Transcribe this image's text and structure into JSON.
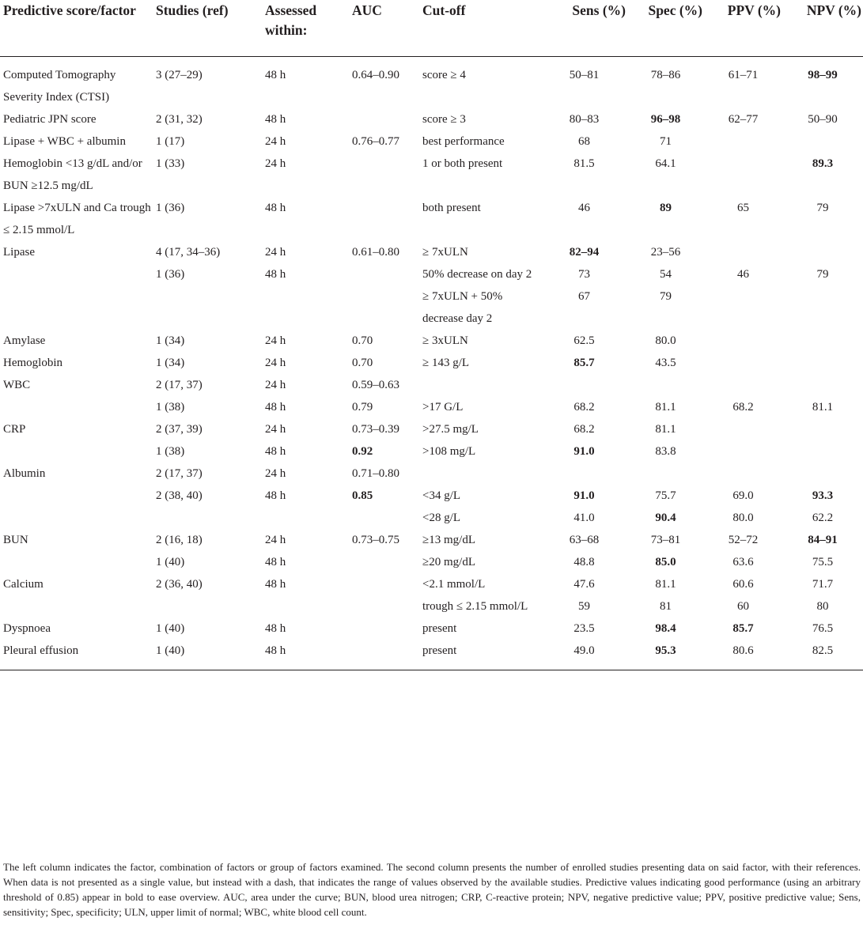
{
  "headers": [
    "Predictive score/factor",
    "Studies (ref)",
    "Assessed within:",
    "AUC",
    "Cut-off",
    "Sens (%)",
    "Spec (%)",
    "PPV (%)",
    "NPV (%)"
  ],
  "rows": [
    {
      "factor": "Computed Tomography Severity Index (CTSI)",
      "studies": "3 (27–29)",
      "assessed": "48 h",
      "auc": "0.64–0.90",
      "cutoff": "score ≥ 4",
      "sens": "50–81",
      "spec": "78–86",
      "ppv": "61–71",
      "npv": "98–99",
      "bold": [
        "npv"
      ]
    },
    {
      "factor": "Pediatric JPN score",
      "studies": "2 (31, 32)",
      "assessed": "48 h",
      "auc": "",
      "cutoff": "score ≥ 3",
      "sens": "80–83",
      "spec": "96–98",
      "ppv": "62–77",
      "npv": "50–90",
      "bold": [
        "spec"
      ]
    },
    {
      "factor": "Lipase + WBC + albumin",
      "studies": "1 (17)",
      "assessed": "24 h",
      "auc": "0.76–0.77",
      "cutoff": "best performance",
      "sens": "68",
      "spec": "71",
      "ppv": "",
      "npv": "",
      "bold": []
    },
    {
      "factor": "Hemoglobin <13 g/dL and/or BUN ≥12.5 mg/dL",
      "studies": "1 (33)",
      "assessed": "24 h",
      "auc": "",
      "cutoff": "1 or both present",
      "sens": "81.5",
      "spec": "64.1",
      "ppv": "",
      "npv": "89.3",
      "bold": [
        "npv"
      ]
    },
    {
      "factor": "Lipase >7xULN and Ca trough ≤ 2.15 mmol/L",
      "studies": "1 (36)",
      "assessed": "48 h",
      "auc": "",
      "cutoff": "both present",
      "sens": "46",
      "spec": "89",
      "ppv": "65",
      "npv": "79",
      "bold": [
        "spec"
      ]
    },
    {
      "factor": "Lipase",
      "studies": "4 (17, 34–36)",
      "assessed": "24 h",
      "auc": "0.61–0.80",
      "cutoff": "≥ 7xULN",
      "sens": "82–94",
      "spec": "23–56",
      "ppv": "",
      "npv": "",
      "bold": [
        "sens"
      ]
    },
    {
      "factor": "",
      "studies": "1 (36)",
      "assessed": "48 h",
      "auc": "",
      "cutoff": "50% decrease on day 2",
      "sens": "73",
      "spec": "54",
      "ppv": "46",
      "npv": "79",
      "bold": []
    },
    {
      "factor": "",
      "studies": "",
      "assessed": "",
      "auc": "",
      "cutoff": "≥ 7xULN + 50% decrease day 2",
      "sens": "67",
      "spec": "79",
      "ppv": "",
      "npv": "",
      "bold": []
    },
    {
      "factor": "Amylase",
      "studies": "1 (34)",
      "assessed": "24 h",
      "auc": "0.70",
      "cutoff": "≥ 3xULN",
      "sens": "62.5",
      "spec": "80.0",
      "ppv": "",
      "npv": "",
      "bold": []
    },
    {
      "factor": "Hemoglobin",
      "studies": "1 (34)",
      "assessed": "24 h",
      "auc": "0.70",
      "cutoff": "≥ 143 g/L",
      "sens": "85.7",
      "spec": "43.5",
      "ppv": "",
      "npv": "",
      "bold": [
        "sens"
      ]
    },
    {
      "factor": "WBC",
      "studies": "2 (17, 37)",
      "assessed": "24 h",
      "auc": "0.59–0.63",
      "cutoff": "",
      "sens": "",
      "spec": "",
      "ppv": "",
      "npv": "",
      "bold": []
    },
    {
      "factor": "",
      "studies": "1 (38)",
      "assessed": "48 h",
      "auc": "0.79",
      "cutoff": ">17 G/L",
      "sens": "68.2",
      "spec": "81.1",
      "ppv": "68.2",
      "npv": "81.1",
      "bold": []
    },
    {
      "factor": "CRP",
      "studies": "2 (37, 39)",
      "assessed": "24 h",
      "auc": "0.73–0.39",
      "cutoff": ">27.5 mg/L",
      "sens": "68.2",
      "spec": "81.1",
      "ppv": "",
      "npv": "",
      "bold": []
    },
    {
      "factor": "",
      "studies": "1 (38)",
      "assessed": "48 h",
      "auc": "0.92",
      "cutoff": ">108 mg/L",
      "sens": "91.0",
      "spec": "83.8",
      "ppv": "",
      "npv": "",
      "bold": [
        "auc",
        "sens"
      ]
    },
    {
      "factor": "Albumin",
      "studies": "2 (17, 37)",
      "assessed": "24 h",
      "auc": "0.71–0.80",
      "cutoff": "",
      "sens": "",
      "spec": "",
      "ppv": "",
      "npv": "",
      "bold": []
    },
    {
      "factor": "",
      "studies": "2 (38, 40)",
      "assessed": "48 h",
      "auc": "0.85",
      "cutoff": "<34 g/L",
      "sens": "91.0",
      "spec": "75.7",
      "ppv": "69.0",
      "npv": "93.3",
      "bold": [
        "auc",
        "sens",
        "npv"
      ]
    },
    {
      "factor": "",
      "studies": "",
      "assessed": "",
      "auc": "",
      "cutoff": "<28 g/L",
      "sens": "41.0",
      "spec": "90.4",
      "ppv": "80.0",
      "npv": "62.2",
      "bold": [
        "spec"
      ]
    },
    {
      "factor": "BUN",
      "studies": "2 (16, 18)",
      "assessed": "24 h",
      "auc": "0.73–0.75",
      "cutoff": "≥13 mg/dL",
      "sens": "63–68",
      "spec": "73–81",
      "ppv": "52–72",
      "npv": "84–91",
      "bold": [
        "npv"
      ]
    },
    {
      "factor": "",
      "studies": "1 (40)",
      "assessed": "48 h",
      "auc": "",
      "cutoff": "≥20 mg/dL",
      "sens": "48.8",
      "spec": "85.0",
      "ppv": "63.6",
      "npv": "75.5",
      "bold": [
        "spec"
      ]
    },
    {
      "factor": "Calcium",
      "studies": "2 (36, 40)",
      "assessed": "48 h",
      "auc": "",
      "cutoff": "<2.1 mmol/L",
      "sens": "47.6",
      "spec": "81.1",
      "ppv": "60.6",
      "npv": "71.7",
      "bold": []
    },
    {
      "factor": "",
      "studies": "",
      "assessed": "",
      "auc": "",
      "cutoff": "trough ≤ 2.15 mmol/L",
      "sens": "59",
      "spec": "81",
      "ppv": "60",
      "npv": "80",
      "bold": []
    },
    {
      "factor": "Dyspnoea",
      "studies": "1 (40)",
      "assessed": "48 h",
      "auc": "",
      "cutoff": "present",
      "sens": "23.5",
      "spec": "98.4",
      "ppv": "85.7",
      "npv": "76.5",
      "bold": [
        "spec",
        "ppv"
      ]
    },
    {
      "factor": "Pleural effusion",
      "studies": "1 (40)",
      "assessed": "48 h",
      "auc": "",
      "cutoff": "present",
      "sens": "49.0",
      "spec": "95.3",
      "ppv": "80.6",
      "npv": "82.5",
      "bold": [
        "spec"
      ]
    }
  ],
  "footnote": "The left column indicates the factor, combination of factors or group of factors examined. The second column presents the number of enrolled studies presenting data on said factor, with their references. When data is not presented as a single value, but instead with a dash, that indicates the range of values observed by the available studies. Predictive values indicating good performance (using an arbitrary threshold of 0.85) appear in bold to ease overview. AUC, area under the curve; BUN, blood urea nitrogen; CRP, C-reactive protein; NPV, negative predictive value; PPV, positive predictive value; Sens, sensitivity; Spec, specificity; ULN, upper limit of normal; WBC, white blood cell count."
}
